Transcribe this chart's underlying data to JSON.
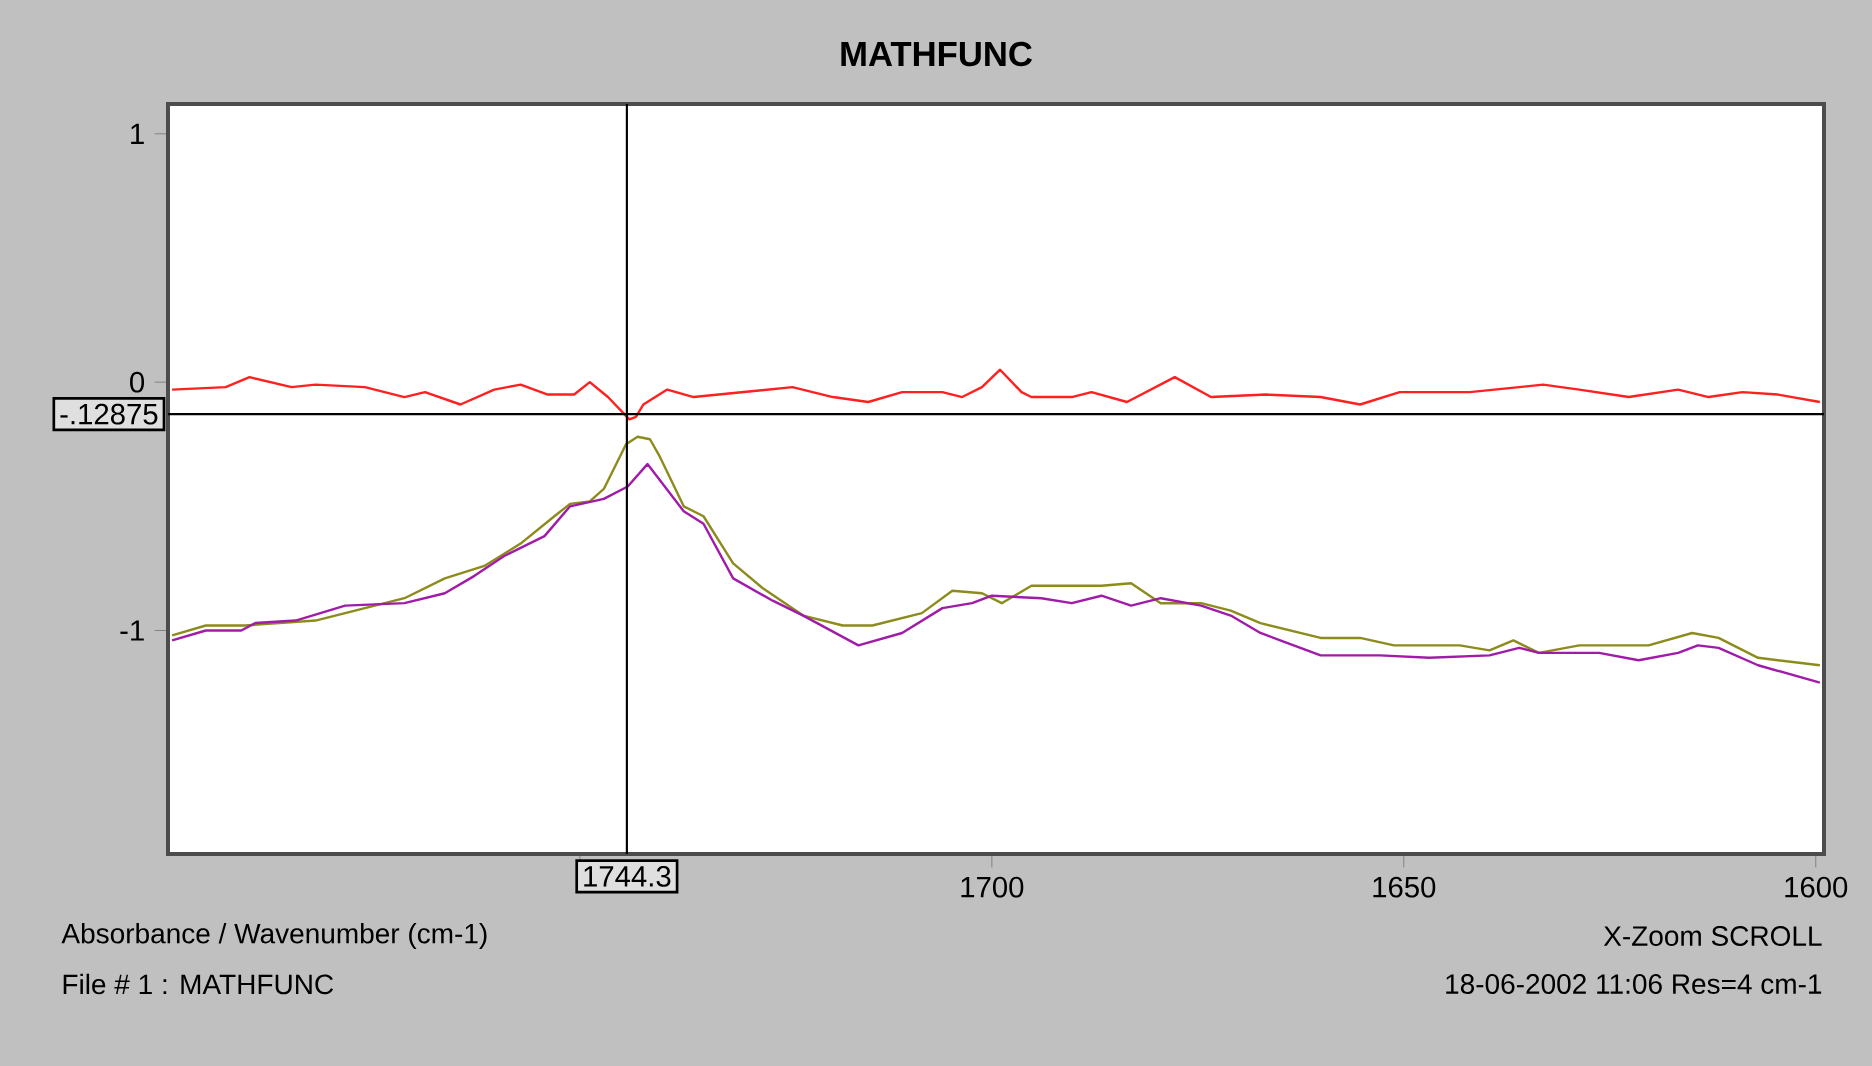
{
  "chart_data": {
    "type": "line",
    "title": "MATHFUNC",
    "xlabel": "Absorbance / Wavenumber (cm-1)",
    "annotations": [
      "X-Zoom SCROLL",
      "File # 1 : MATHFUNC",
      "18-06-2002  11:06  Res=4 cm-1"
    ],
    "xlim": [
      1800,
      1599
    ],
    "ylim": [
      -1.9,
      1.12
    ],
    "xticks": [
      {
        "value": 1750,
        "label": null
      },
      1700,
      1650,
      1600
    ],
    "yticks": [
      1,
      0,
      -1
    ],
    "marker": "none",
    "line_style": "solid",
    "ref_lines": [
      {
        "axis": "x",
        "value": 1744.3,
        "label": "1744.3",
        "color": "#000000"
      },
      {
        "axis": "y",
        "value": -0.12875,
        "label": "-.12875",
        "color": "#000000"
      }
    ],
    "series": [
      {
        "color": "#ff2020",
        "x": [
          1799.5,
          1793.0,
          1790.1,
          1785.0,
          1782.1,
          1776.1,
          1771.3,
          1768.8,
          1764.5,
          1760.4,
          1757.2,
          1753.9,
          1750.7,
          1748.8,
          1746.6,
          1744.0,
          1743.2,
          1742.3,
          1739.4,
          1736.2,
          1730.2,
          1724.2,
          1719.3,
          1715.0,
          1710.9,
          1706.0,
          1703.6,
          1701.2,
          1699.0,
          1696.4,
          1695.2,
          1690.3,
          1687.9,
          1683.6,
          1677.8,
          1673.4,
          1666.7,
          1660.1,
          1655.3,
          1650.5,
          1642.0,
          1636.0,
          1633.1,
          1628.7,
          1622.7,
          1616.7,
          1613.0,
          1608.9,
          1604.6,
          1599.5
        ],
        "values": [
          -0.03,
          -0.02,
          0.02,
          -0.02,
          -0.01,
          -0.02,
          -0.06,
          -0.04,
          -0.09,
          -0.03,
          -0.01,
          -0.05,
          -0.05,
          0.0,
          -0.06,
          -0.15,
          -0.14,
          -0.09,
          -0.03,
          -0.06,
          -0.04,
          -0.02,
          -0.06,
          -0.08,
          -0.04,
          -0.04,
          -0.06,
          -0.02,
          0.05,
          -0.04,
          -0.06,
          -0.06,
          -0.04,
          -0.08,
          0.02,
          -0.06,
          -0.05,
          -0.06,
          -0.09,
          -0.04,
          -0.04,
          -0.02,
          -0.01,
          -0.03,
          -0.06,
          -0.03,
          -0.06,
          -0.04,
          -0.05,
          -0.08
        ]
      },
      {
        "color": "#8c8c1c",
        "x": [
          1799.5,
          1795.4,
          1790.6,
          1782.1,
          1777.3,
          1771.3,
          1766.4,
          1761.6,
          1757.2,
          1753.1,
          1751.2,
          1748.8,
          1747.1,
          1744.4,
          1743.0,
          1741.5,
          1740.3,
          1737.4,
          1735.0,
          1731.4,
          1727.8,
          1722.9,
          1718.1,
          1714.5,
          1708.5,
          1704.8,
          1701.2,
          1698.8,
          1695.2,
          1686.7,
          1683.1,
          1679.5,
          1674.6,
          1671.0,
          1667.4,
          1660.1,
          1655.3,
          1651.2,
          1643.2,
          1639.6,
          1636.7,
          1633.6,
          1628.7,
          1620.3,
          1615.0,
          1611.8,
          1607.0,
          1599.5
        ],
        "values": [
          -1.02,
          -0.98,
          -0.98,
          -0.96,
          -0.92,
          -0.87,
          -0.79,
          -0.74,
          -0.65,
          -0.54,
          -0.49,
          -0.48,
          -0.43,
          -0.25,
          -0.22,
          -0.23,
          -0.3,
          -0.5,
          -0.54,
          -0.73,
          -0.83,
          -0.94,
          -0.98,
          -0.98,
          -0.93,
          -0.84,
          -0.85,
          -0.89,
          -0.82,
          -0.82,
          -0.81,
          -0.89,
          -0.89,
          -0.92,
          -0.97,
          -1.03,
          -1.03,
          -1.06,
          -1.06,
          -1.08,
          -1.04,
          -1.09,
          -1.06,
          -1.06,
          -1.01,
          -1.03,
          -1.11,
          -1.14
        ]
      },
      {
        "color": "#a01ca8",
        "x": [
          1799.5,
          1795.4,
          1791.1,
          1789.4,
          1784.5,
          1778.5,
          1771.3,
          1766.4,
          1762.8,
          1759.2,
          1754.3,
          1751.2,
          1747.1,
          1744.2,
          1741.8,
          1737.4,
          1735.0,
          1731.4,
          1726.6,
          1722.9,
          1716.2,
          1710.9,
          1706.0,
          1702.4,
          1700.0,
          1694.0,
          1690.3,
          1686.7,
          1683.1,
          1679.5,
          1674.6,
          1671.0,
          1667.4,
          1665.0,
          1660.1,
          1652.9,
          1646.9,
          1639.6,
          1636.0,
          1633.6,
          1626.3,
          1621.5,
          1616.7,
          1614.3,
          1611.8,
          1607.0,
          1599.5
        ],
        "values": [
          -1.04,
          -1.0,
          -1.0,
          -0.97,
          -0.96,
          -0.9,
          -0.89,
          -0.85,
          -0.78,
          -0.7,
          -0.62,
          -0.5,
          -0.47,
          -0.42,
          -0.33,
          -0.52,
          -0.57,
          -0.79,
          -0.88,
          -0.94,
          -1.06,
          -1.01,
          -0.91,
          -0.89,
          -0.86,
          -0.87,
          -0.89,
          -0.86,
          -0.9,
          -0.87,
          -0.9,
          -0.94,
          -1.01,
          -1.04,
          -1.1,
          -1.1,
          -1.11,
          -1.1,
          -1.07,
          -1.09,
          -1.09,
          -1.12,
          -1.09,
          -1.06,
          -1.07,
          -1.14,
          -1.21
        ]
      }
    ]
  }
}
